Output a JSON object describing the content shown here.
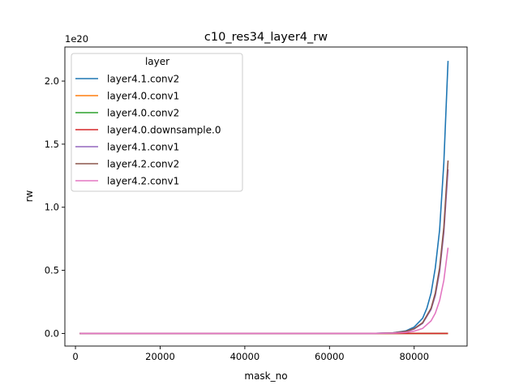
{
  "chart_data": {
    "type": "line",
    "title": "c10_res34_layer4_rw",
    "xlabel": "mask_no",
    "ylabel": "rw",
    "y_offset_label": "1e20",
    "xlim": [
      -2500,
      92500
    ],
    "ylim": [
      -0.1,
      2.27
    ],
    "x_ticks": [
      0,
      20000,
      40000,
      60000,
      80000
    ],
    "x_tick_labels": [
      "0",
      "20000",
      "40000",
      "60000",
      "80000"
    ],
    "y_ticks": [
      0.0,
      0.5,
      1.0,
      1.5,
      2.0
    ],
    "y_tick_labels": [
      "0.0",
      "0.5",
      "1.0",
      "1.5",
      "2.0"
    ],
    "grid": false,
    "legend": {
      "title": "layer",
      "placement": "top-left"
    },
    "series": [
      {
        "name": "layer4.1.conv2",
        "color": "#1f77b4",
        "x": [
          1000,
          70000,
          75000,
          78000,
          80000,
          82000,
          83000,
          84000,
          85000,
          86000,
          87000,
          88000
        ],
        "y": [
          0,
          0.0,
          0.005,
          0.02,
          0.05,
          0.12,
          0.2,
          0.32,
          0.52,
          0.82,
          1.35,
          2.16
        ]
      },
      {
        "name": "layer4.0.conv1",
        "color": "#ff7f0e",
        "x": [
          1000,
          88000
        ],
        "y": [
          0,
          0
        ]
      },
      {
        "name": "layer4.0.conv2",
        "color": "#2ca02c",
        "x": [
          1000,
          88000
        ],
        "y": [
          0,
          0
        ]
      },
      {
        "name": "layer4.0.downsample.0",
        "color": "#d62728",
        "x": [
          1000,
          88000
        ],
        "y": [
          0,
          0
        ]
      },
      {
        "name": "layer4.1.conv1",
        "color": "#9467bd",
        "x": [
          1000,
          70000,
          75000,
          78000,
          80000,
          82000,
          84000,
          85000,
          86000,
          87000,
          88000
        ],
        "y": [
          0,
          0.0,
          0.004,
          0.015,
          0.035,
          0.08,
          0.19,
          0.3,
          0.49,
          0.8,
          1.3
        ]
      },
      {
        "name": "layer4.2.conv2",
        "color": "#8c564b",
        "x": [
          1000,
          70000,
          75000,
          78000,
          80000,
          82000,
          84000,
          85000,
          86000,
          87000,
          88000
        ],
        "y": [
          0,
          0.0,
          0.004,
          0.016,
          0.038,
          0.085,
          0.2,
          0.32,
          0.52,
          0.84,
          1.37
        ]
      },
      {
        "name": "layer4.2.conv1",
        "color": "#e377c2",
        "x": [
          1000,
          70000,
          75000,
          78000,
          80000,
          82000,
          84000,
          85000,
          86000,
          87000,
          88000
        ],
        "y": [
          0,
          0.0,
          0.002,
          0.008,
          0.018,
          0.04,
          0.1,
          0.16,
          0.26,
          0.42,
          0.68
        ]
      }
    ]
  }
}
